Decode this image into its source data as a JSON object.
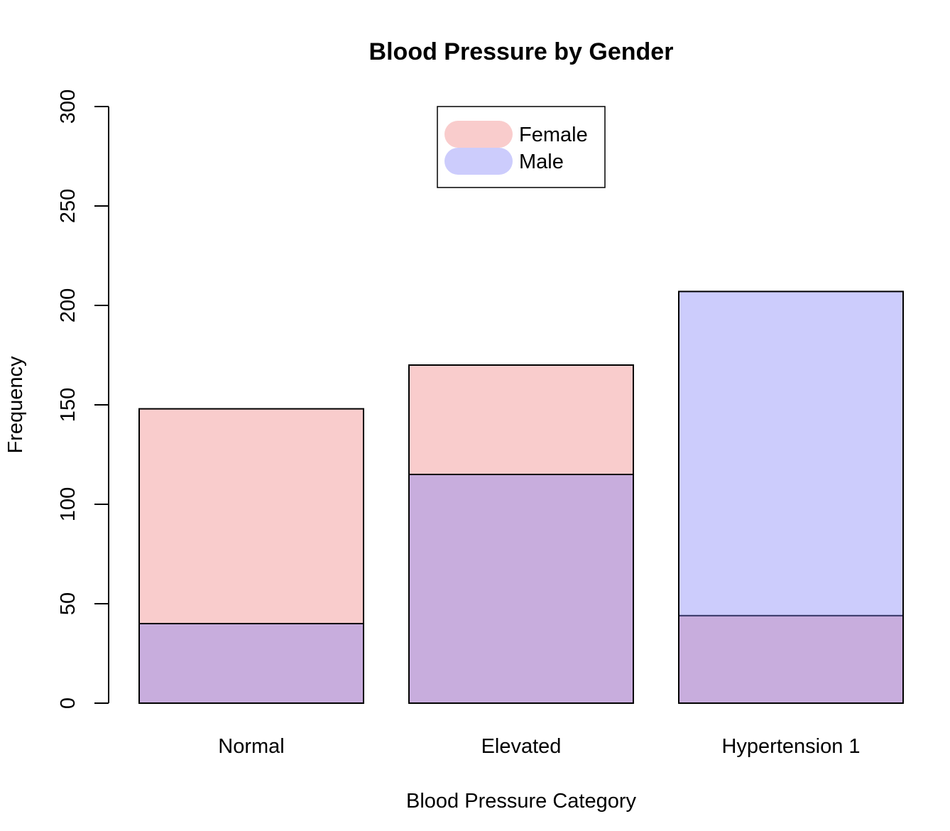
{
  "chart_data": {
    "type": "bar",
    "title": "Blood Pressure by Gender",
    "xlabel": "Blood Pressure Category",
    "ylabel": "Frequency",
    "categories": [
      "Normal",
      "Elevated",
      "Hypertension 1"
    ],
    "series": [
      {
        "name": "Female",
        "values": [
          148,
          170,
          44
        ],
        "color": "#F08080"
      },
      {
        "name": "Male",
        "values": [
          40,
          115,
          207
        ],
        "color": "#8080F8"
      }
    ],
    "ylim": [
      0,
      300
    ],
    "yticks": [
      "0",
      "50",
      "100",
      "150",
      "200",
      "250",
      "300"
    ],
    "overlay": "semi-transparent overlapping bars",
    "legend_placement": "top-center",
    "grid": false
  }
}
